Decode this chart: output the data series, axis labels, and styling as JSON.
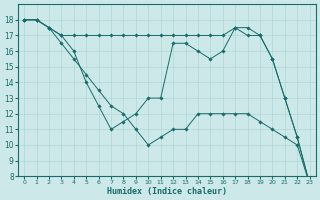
{
  "xlabel": "Humidex (Indice chaleur)",
  "ylabel": "",
  "xlim": [
    -0.5,
    23.5
  ],
  "ylim": [
    8,
    19
  ],
  "yticks": [
    8,
    9,
    10,
    11,
    12,
    13,
    14,
    15,
    16,
    17,
    18
  ],
  "xticks": [
    0,
    1,
    2,
    3,
    4,
    5,
    6,
    7,
    8,
    9,
    10,
    11,
    12,
    13,
    14,
    15,
    16,
    17,
    18,
    19,
    20,
    21,
    22,
    23
  ],
  "bg_color": "#cce8e8",
  "line_color": "#1a6b6b",
  "grid_color_major": "#b0d8d8",
  "grid_color_minor": "#d8ecec",
  "lines": [
    {
      "x": [
        0,
        1,
        2,
        3,
        4,
        5,
        6,
        7,
        8,
        9,
        10,
        11,
        12,
        13,
        14,
        15,
        16,
        17,
        18,
        19,
        20,
        21,
        22,
        23
      ],
      "y": [
        18,
        18,
        17.5,
        17,
        17,
        17,
        17,
        17,
        17,
        17,
        17,
        17,
        17,
        17,
        17,
        17,
        17,
        17.5,
        17.5,
        17,
        15.5,
        13,
        10.5,
        7.5
      ]
    },
    {
      "x": [
        0,
        1,
        2,
        3,
        4,
        5,
        6,
        7,
        8,
        9,
        10,
        11,
        12,
        13,
        14,
        15,
        16,
        17,
        18,
        19,
        20,
        21,
        22,
        23
      ],
      "y": [
        18,
        18,
        17.5,
        17,
        16,
        14,
        12.5,
        11,
        11.5,
        12,
        13,
        13,
        16.5,
        16.5,
        16,
        15.5,
        16,
        17.5,
        17,
        17,
        15.5,
        13,
        10.5,
        7.5
      ]
    },
    {
      "x": [
        0,
        1,
        2,
        3,
        4,
        5,
        6,
        7,
        8,
        9,
        10,
        11,
        12,
        13,
        14,
        15,
        16,
        17,
        18,
        19,
        20,
        21,
        22,
        23
      ],
      "y": [
        18,
        18,
        17.5,
        16.5,
        15.5,
        14.5,
        13.5,
        12.5,
        12,
        11,
        10,
        10.5,
        11,
        11,
        12,
        12,
        12,
        12,
        12,
        11.5,
        11,
        10.5,
        10,
        7.5
      ]
    }
  ]
}
